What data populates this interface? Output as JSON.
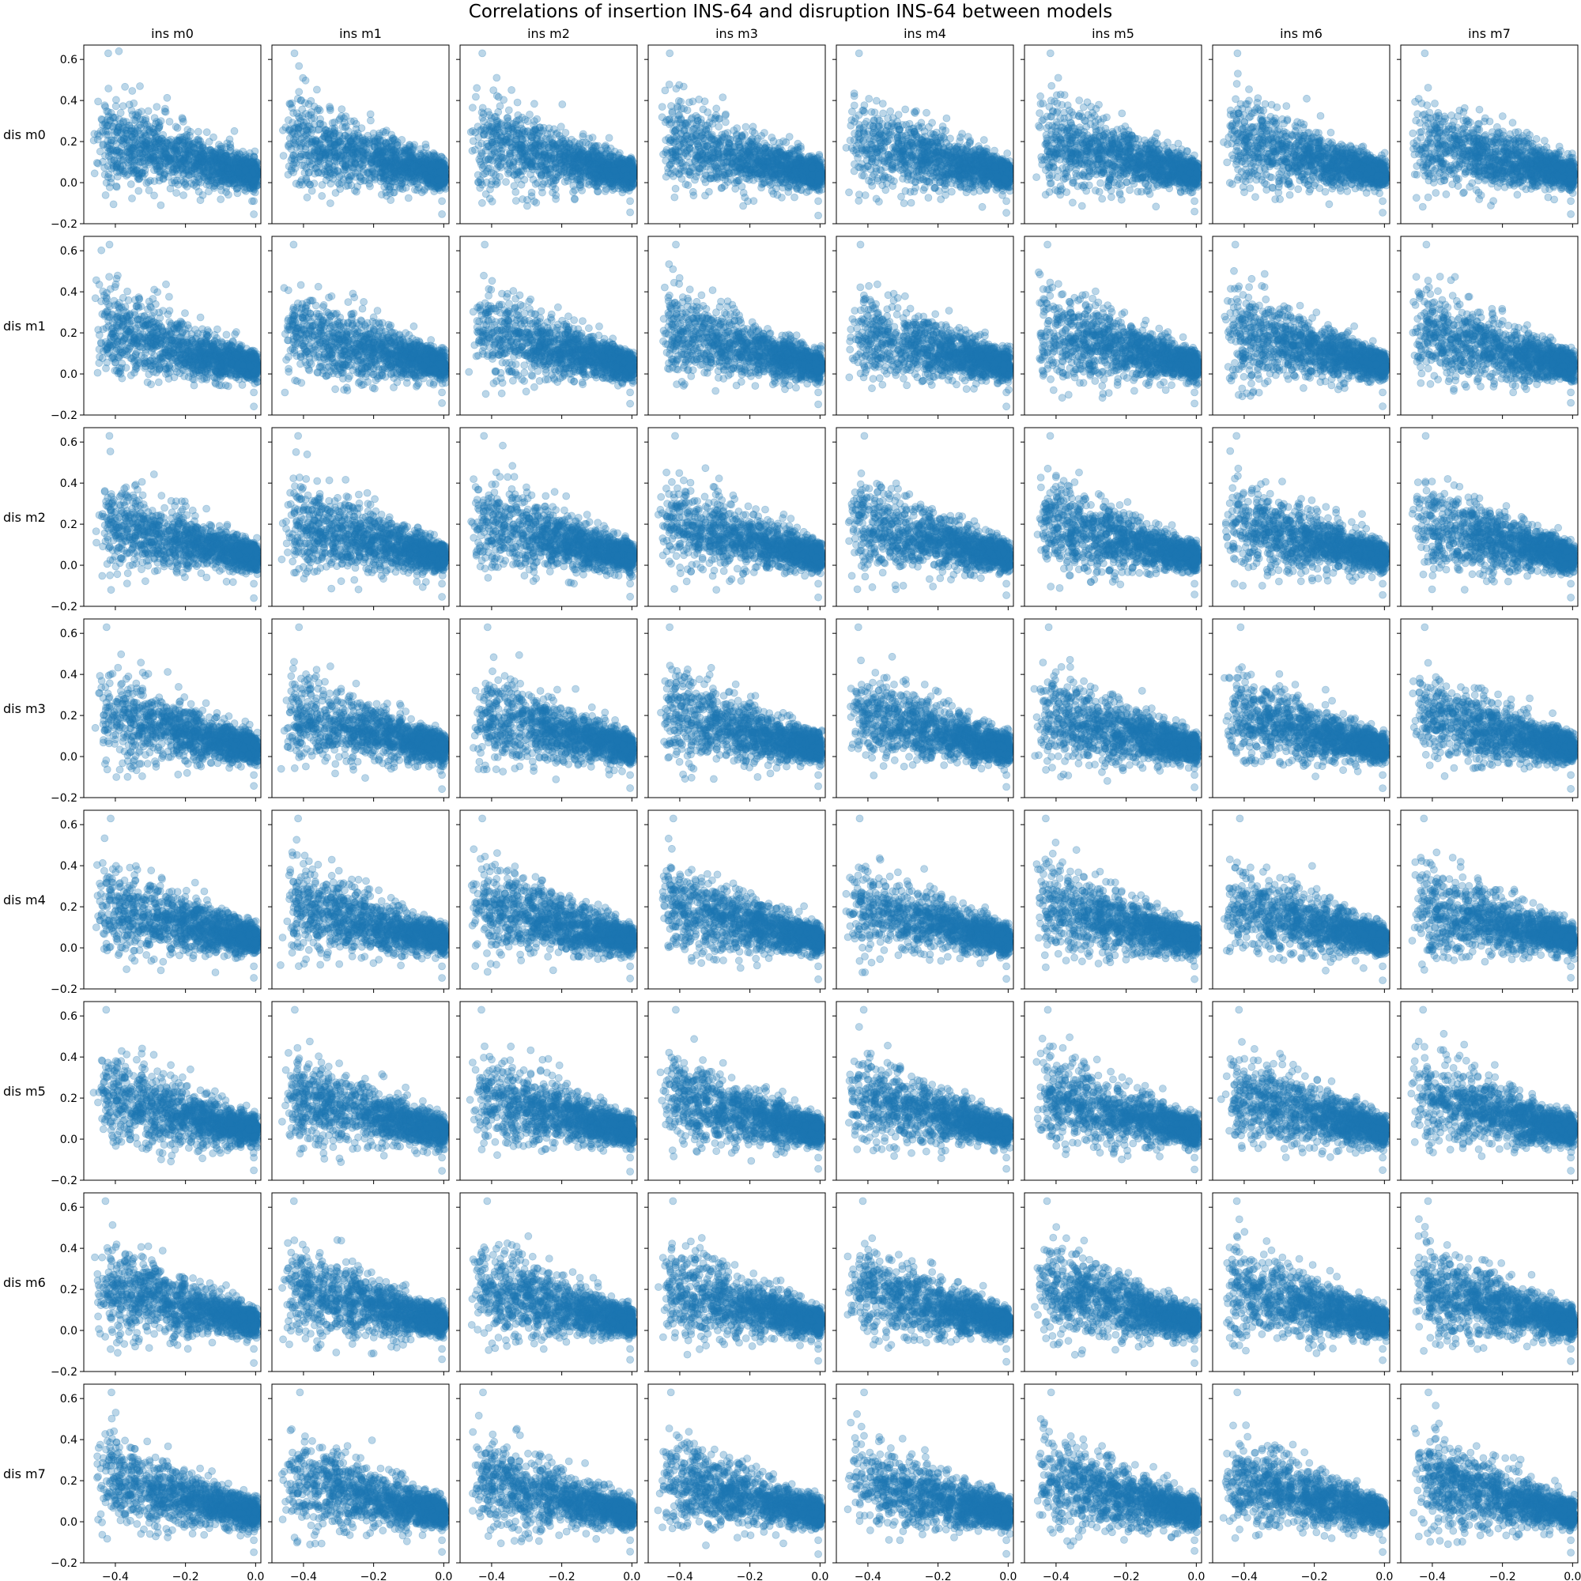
{
  "figure": {
    "title": "Correlations of insertion INS-64 and disruption INS-64 between models"
  },
  "chart_data": {
    "type": "scatter",
    "title": "Correlations of insertion INS-64 and disruption INS-64 between models",
    "column_labels": [
      "ins m0",
      "ins m1",
      "ins m2",
      "ins m3",
      "ins m4",
      "ins m5",
      "ins m6",
      "ins m7"
    ],
    "row_labels": [
      "dis m0",
      "dis m1",
      "dis m2",
      "dis m3",
      "dis m4",
      "dis m5",
      "dis m6",
      "dis m7"
    ],
    "xlim": [
      -0.49,
      0.015
    ],
    "ylim": [
      -0.2,
      0.67
    ],
    "xticks": [
      -0.4,
      -0.2,
      0.0
    ],
    "xtick_labels": [
      "−0.4",
      "−0.2",
      "0.0"
    ],
    "yticks": [
      -0.2,
      0.0,
      0.2,
      0.4,
      0.6
    ],
    "ytick_labels": [
      "−0.2",
      "0.0",
      "0.2",
      "0.4",
      "0.6"
    ],
    "grid": false,
    "marker_color": "#1f77b4",
    "marker_alpha": 0.3,
    "points_per_panel": 1500,
    "description_of_points": "Each of 64 panels (8 rows x 8 columns) is a scatter of insertion vs disruption values; clouds are densest near x≈0, y≈0.05 and spread to x≈-0.45, y≈0.6 with a negative trend.",
    "sample_points_row0_col0": [
      [
        -0.42,
        0.28
      ],
      [
        -0.39,
        0.64
      ],
      [
        -0.36,
        0.38
      ],
      [
        -0.33,
        0.47
      ],
      [
        -0.3,
        0.2
      ],
      [
        -0.27,
        0.3
      ],
      [
        -0.24,
        0.18
      ],
      [
        -0.2,
        0.16
      ],
      [
        -0.16,
        0.12
      ],
      [
        -0.12,
        0.1
      ],
      [
        -0.08,
        0.07
      ],
      [
        -0.05,
        0.05
      ],
      [
        -0.02,
        0.03
      ],
      [
        0.0,
        0.01
      ],
      [
        -0.01,
        -0.09
      ]
    ]
  }
}
